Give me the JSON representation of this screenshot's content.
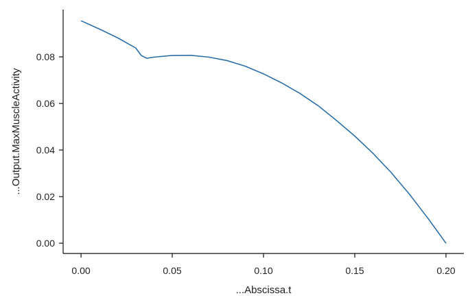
{
  "chart_data": {
    "type": "line",
    "xlabel": "...Abscissa.t",
    "ylabel": "...Output.MaxMuscleActivity",
    "x": [
      0,
      0.01,
      0.02,
      0.03,
      0.033,
      0.036,
      0.04,
      0.05,
      0.06,
      0.07,
      0.08,
      0.09,
      0.1,
      0.11,
      0.12,
      0.13,
      0.14,
      0.15,
      0.16,
      0.17,
      0.18,
      0.19,
      0.2
    ],
    "series": [
      {
        "name": "MaxMuscleActivity",
        "color": "#2c6fa6",
        "values": [
          0.0955,
          0.092,
          0.0882,
          0.0838,
          0.0806,
          0.0794,
          0.0799,
          0.0806,
          0.0807,
          0.0799,
          0.0784,
          0.076,
          0.0727,
          0.0688,
          0.0643,
          0.059,
          0.0527,
          0.046,
          0.0386,
          0.0303,
          0.021,
          0.0108,
          0.0
        ]
      }
    ],
    "xlim": [
      -0.0098,
      0.2098
    ],
    "ylim": [
      -0.0044,
      0.1003
    ],
    "xticks": [
      {
        "value": 0,
        "label": "0.00"
      },
      {
        "value": 0.05,
        "label": "0.05"
      },
      {
        "value": 0.1,
        "label": "0.10"
      },
      {
        "value": 0.15,
        "label": "0.15"
      },
      {
        "value": 0.2,
        "label": "0.20"
      }
    ],
    "yticks": [
      {
        "value": 0,
        "label": "0.00"
      },
      {
        "value": 0.02,
        "label": "0.02"
      },
      {
        "value": 0.04,
        "label": "0.04"
      },
      {
        "value": 0.06,
        "label": "0.06"
      },
      {
        "value": 0.08,
        "label": "0.08"
      }
    ],
    "grid": false
  }
}
